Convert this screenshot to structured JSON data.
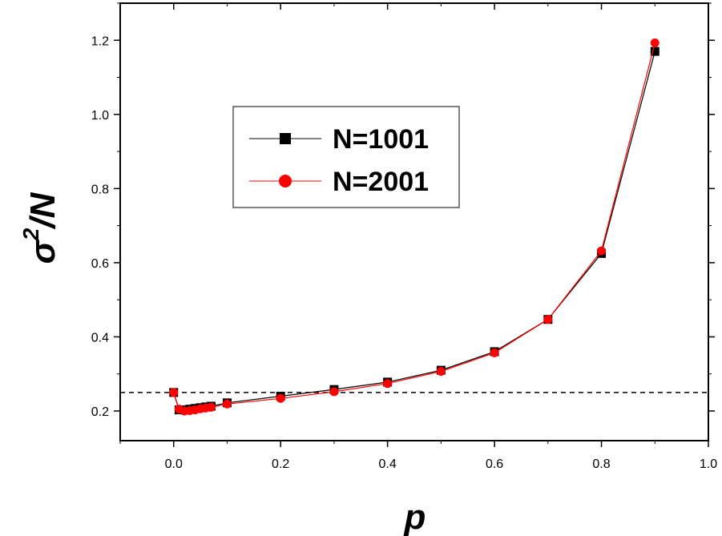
{
  "chart_data": {
    "type": "line",
    "xlabel": "p",
    "ylabel": {
      "base": "σ",
      "superscript": "2",
      "suffix": "/N"
    },
    "xlim": [
      -0.1,
      1.0
    ],
    "ylim": [
      0.12,
      1.3
    ],
    "xticks": [
      0.0,
      0.2,
      0.4,
      0.6,
      0.8,
      1.0
    ],
    "xtick_labels": [
      "0.0",
      "0.2",
      "0.4",
      "0.6",
      "0.8",
      "1.0"
    ],
    "yticks": [
      0.2,
      0.4,
      0.6,
      0.8,
      1.0,
      1.2
    ],
    "ytick_labels": [
      "0.2",
      "0.4",
      "0.6",
      "0.8",
      "1.0",
      "1.2"
    ],
    "reference_line": {
      "y": 0.25,
      "style": "dashed",
      "color": "#000000"
    },
    "grid": false,
    "legend_position": "upper-left-center",
    "series": [
      {
        "name": "N=1001",
        "color": "#000000",
        "marker": "square",
        "x": [
          0.0,
          0.01,
          0.02,
          0.03,
          0.04,
          0.05,
          0.06,
          0.07,
          0.1,
          0.2,
          0.3,
          0.4,
          0.5,
          0.6,
          0.7,
          0.8,
          0.9
        ],
        "y": [
          0.25,
          0.203,
          0.203,
          0.205,
          0.207,
          0.209,
          0.211,
          0.213,
          0.222,
          0.24,
          0.258,
          0.278,
          0.31,
          0.36,
          0.447,
          0.625,
          1.17
        ]
      },
      {
        "name": "N=2001",
        "color": "#ff0000",
        "marker": "circle",
        "x": [
          0.0,
          0.01,
          0.02,
          0.03,
          0.04,
          0.05,
          0.06,
          0.07,
          0.1,
          0.2,
          0.3,
          0.4,
          0.5,
          0.6,
          0.7,
          0.8,
          0.9
        ],
        "y": [
          0.25,
          0.205,
          0.2,
          0.201,
          0.203,
          0.206,
          0.208,
          0.21,
          0.219,
          0.234,
          0.252,
          0.274,
          0.307,
          0.357,
          0.447,
          0.632,
          1.193
        ]
      }
    ]
  }
}
